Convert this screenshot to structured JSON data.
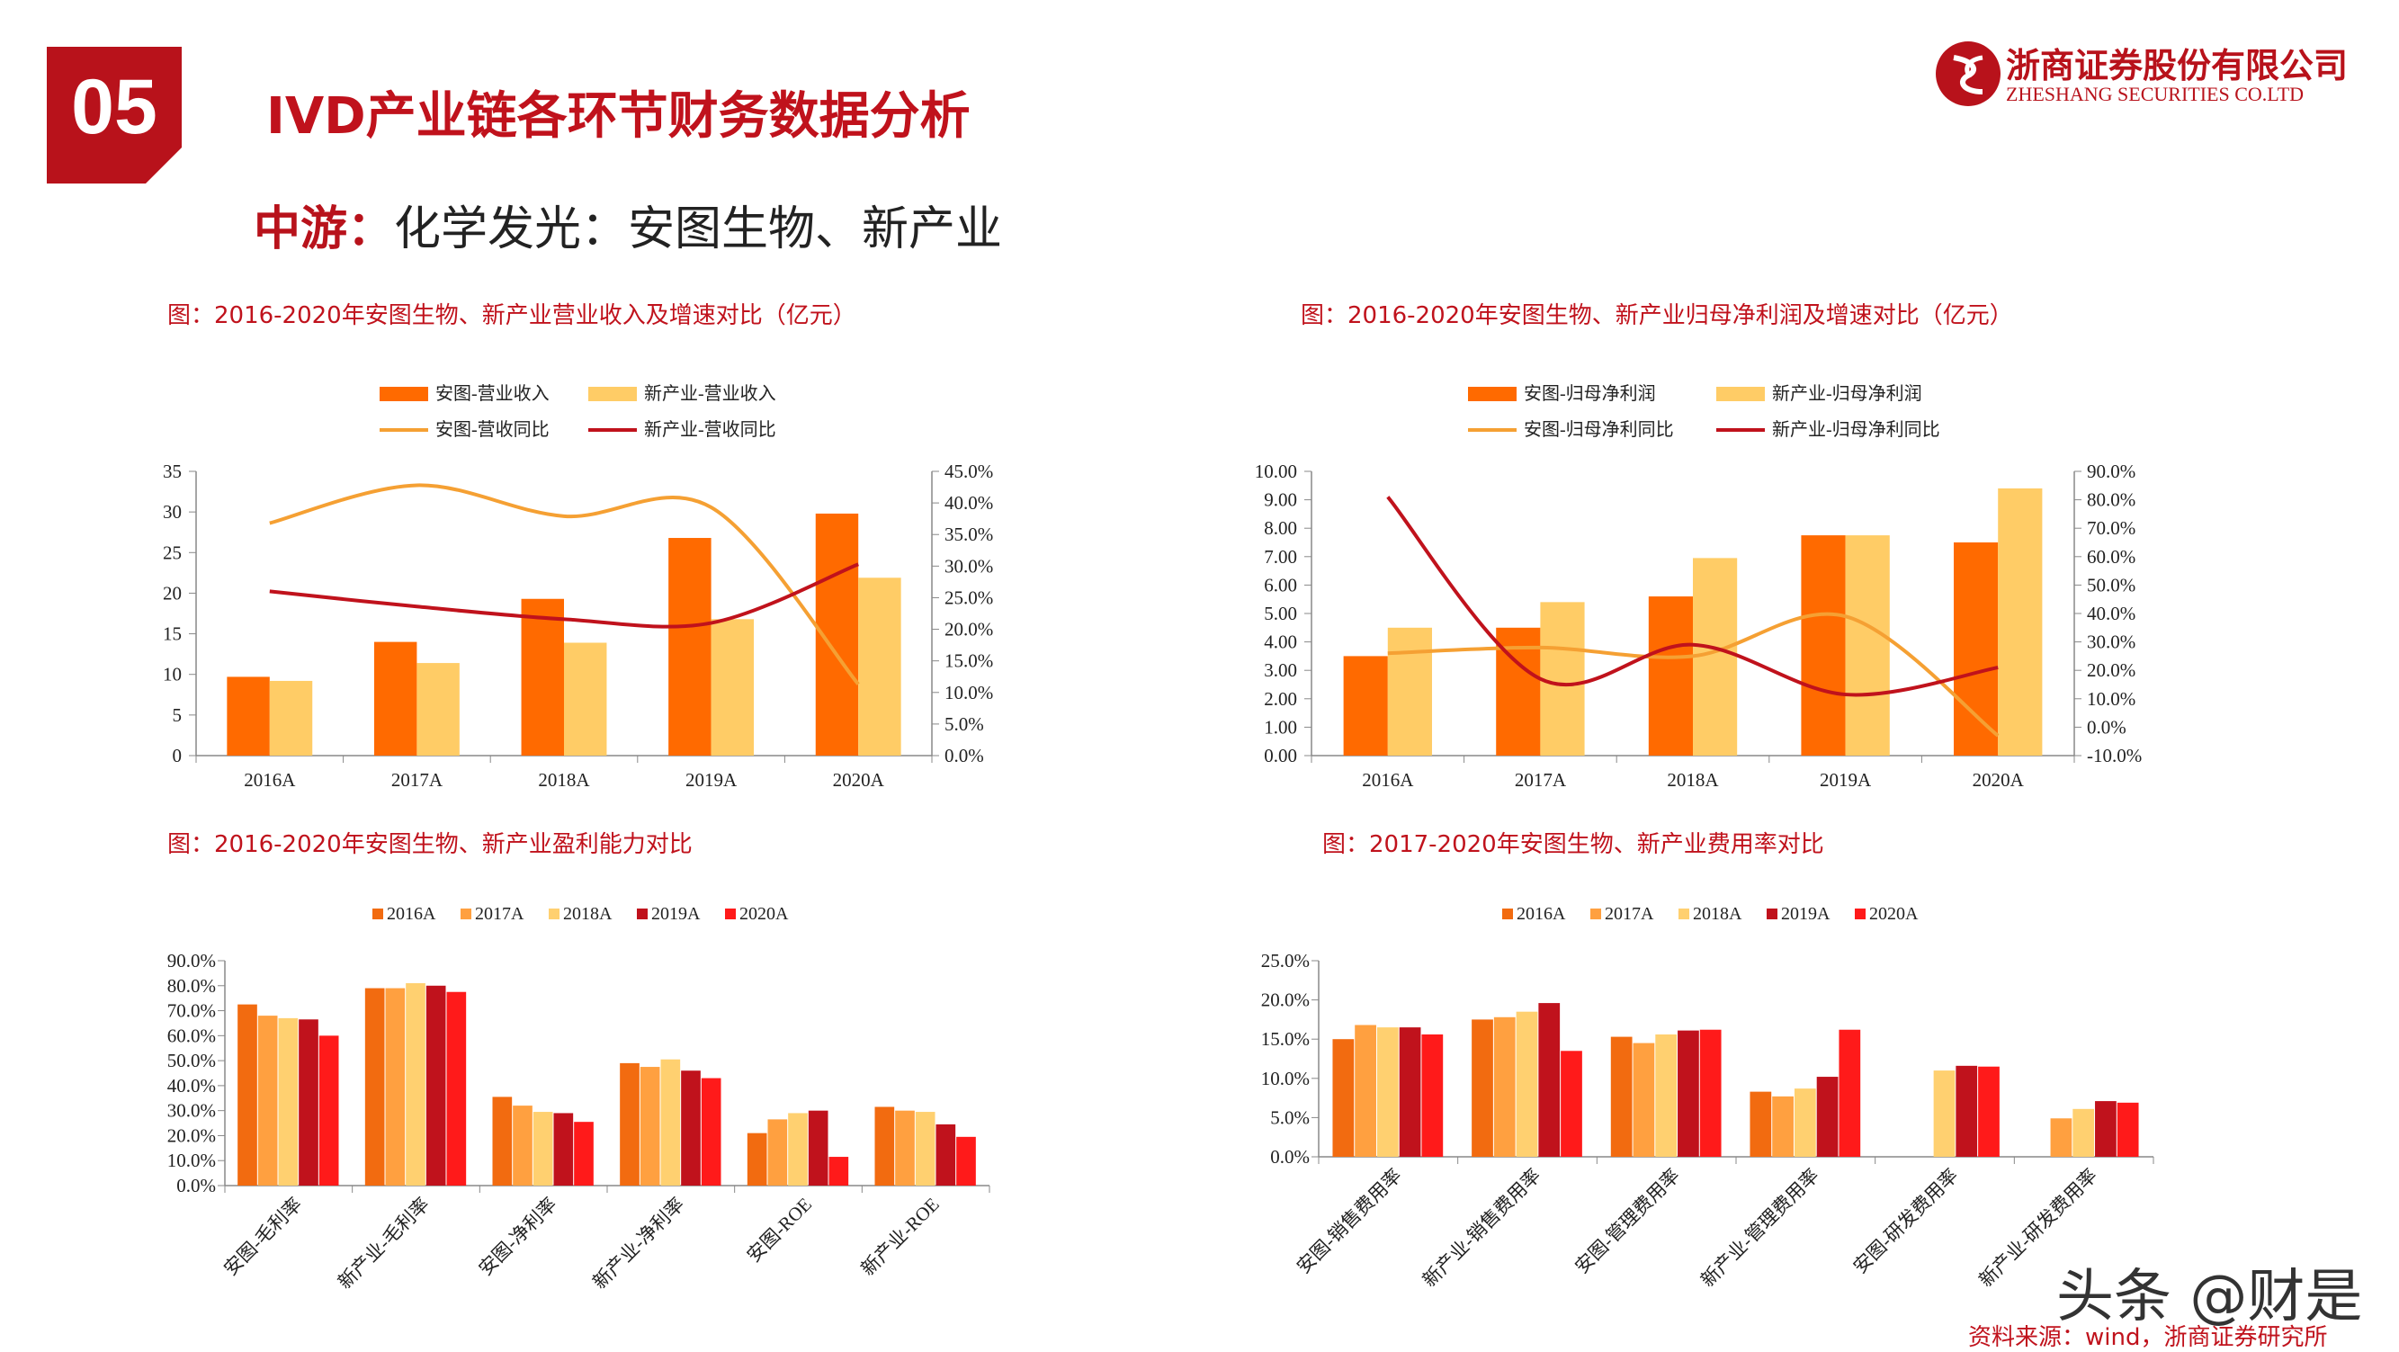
{
  "header": {
    "badge": "05",
    "title": "IVD产业链各环节财务数据分析",
    "subtitle_bold": "中游：",
    "subtitle_rest": "化学发光：安图生物、新产业",
    "logo_cn": "浙商证券股份有限公司",
    "logo_en": "ZHESHANG SECURITIES CO.LTD"
  },
  "footer": {
    "source": "资料来源：wind，浙商证券研究所",
    "watermark": "头条 @财是"
  },
  "colors": {
    "antu_bar": "#ff6a00",
    "xcy_bar": "#ffcc66",
    "antu_line": "#f5a033",
    "xcy_line": "#c0121c",
    "y2016": "#f26b10",
    "y2017": "#ffa040",
    "y2018": "#ffd070",
    "y2019": "#c0121c",
    "y2020": "#ff1a1a"
  },
  "chart_data": [
    {
      "type": "bar",
      "title": "图：2016-2020年安图生物、新产业营业收入及增速对比（亿元）",
      "categories": [
        "2016A",
        "2017A",
        "2018A",
        "2019A",
        "2020A"
      ],
      "series": [
        {
          "name": "安图-营业收入",
          "kind": "bar",
          "axis": "left",
          "values": [
            9.7,
            14.0,
            19.3,
            26.8,
            29.8
          ]
        },
        {
          "name": "新产业-营业收入",
          "kind": "bar",
          "axis": "left",
          "values": [
            9.2,
            11.4,
            13.9,
            16.8,
            21.9
          ]
        },
        {
          "name": "安图-营收同比",
          "kind": "line",
          "axis": "right",
          "values": [
            36.8,
            42.8,
            37.9,
            39.3,
            11.3
          ]
        },
        {
          "name": "新产业-营收同比",
          "kind": "line",
          "axis": "right",
          "values": [
            26.0,
            23.6,
            21.6,
            21.0,
            30.3
          ]
        }
      ],
      "yticks_left": [
        "0",
        "5",
        "10",
        "15",
        "20",
        "25",
        "30",
        "35"
      ],
      "ylim_left": [
        0,
        35
      ],
      "yticks_right": [
        "0.0%",
        "5.0%",
        "10.0%",
        "15.0%",
        "20.0%",
        "25.0%",
        "30.0%",
        "35.0%",
        "40.0%",
        "45.0%"
      ],
      "ylim_right": [
        0,
        45
      ],
      "legend": "top"
    },
    {
      "type": "bar",
      "title": "图：2016-2020年安图生物、新产业归母净利润及增速对比（亿元）",
      "categories": [
        "2016A",
        "2017A",
        "2018A",
        "2019A",
        "2020A"
      ],
      "series": [
        {
          "name": "安图-归母净利润",
          "kind": "bar",
          "axis": "left",
          "values": [
            3.5,
            4.5,
            5.6,
            7.75,
            7.5
          ]
        },
        {
          "name": "新产业-归母净利润",
          "kind": "bar",
          "axis": "left",
          "values": [
            4.5,
            5.4,
            6.95,
            7.75,
            9.4
          ]
        },
        {
          "name": "安图-归母净利同比",
          "kind": "line",
          "axis": "right",
          "values": [
            26.0,
            28.0,
            25.0,
            39.0,
            -3.0
          ]
        },
        {
          "name": "新产业-归母净利同比",
          "kind": "line",
          "axis": "right",
          "values": [
            81.0,
            17.0,
            29.0,
            11.5,
            21.0
          ]
        }
      ],
      "yticks_left": [
        "0.00",
        "1.00",
        "2.00",
        "3.00",
        "4.00",
        "5.00",
        "6.00",
        "7.00",
        "8.00",
        "9.00",
        "10.00"
      ],
      "ylim_left": [
        0,
        10
      ],
      "yticks_right": [
        "-10.0%",
        "0.0%",
        "10.0%",
        "20.0%",
        "30.0%",
        "40.0%",
        "50.0%",
        "60.0%",
        "70.0%",
        "80.0%",
        "90.0%"
      ],
      "ylim_right": [
        -10,
        90
      ],
      "legend": "top"
    },
    {
      "type": "bar",
      "title": "图：2016-2020年安图生物、新产业盈利能力对比",
      "categories": [
        "安图-毛利率",
        "新产业-毛利率",
        "安图-净利率",
        "新产业-净利率",
        "安图-ROE",
        "新产业-ROE"
      ],
      "series": [
        {
          "name": "2016A",
          "values": [
            72.5,
            79.0,
            35.5,
            49.0,
            21.0,
            31.5
          ]
        },
        {
          "name": "2017A",
          "values": [
            68.0,
            79.0,
            32.0,
            47.5,
            26.5,
            30.0
          ]
        },
        {
          "name": "2018A",
          "values": [
            67.0,
            81.0,
            29.5,
            50.5,
            29.0,
            29.5
          ]
        },
        {
          "name": "2019A",
          "values": [
            66.5,
            80.0,
            29.0,
            46.0,
            30.0,
            24.5
          ]
        },
        {
          "name": "2020A",
          "values": [
            60.0,
            77.5,
            25.5,
            43.0,
            11.5,
            19.5
          ]
        }
      ],
      "yticks": [
        "0.0%",
        "10.0%",
        "20.0%",
        "30.0%",
        "40.0%",
        "50.0%",
        "60.0%",
        "70.0%",
        "80.0%",
        "90.0%"
      ],
      "ylim": [
        0,
        90
      ],
      "legend": "top"
    },
    {
      "type": "bar",
      "title": "图：2017-2020年安图生物、新产业费用率对比",
      "categories": [
        "安图-销售费用率",
        "新产业-销售费用率",
        "安图-管理费用率",
        "新产业-管理费用率",
        "安图-研发费用率",
        "新产业-研发费用率"
      ],
      "series": [
        {
          "name": "2016A",
          "values": [
            15.0,
            17.5,
            15.3,
            8.3,
            0,
            0
          ]
        },
        {
          "name": "2017A",
          "values": [
            16.8,
            17.8,
            14.5,
            7.7,
            0,
            4.9
          ]
        },
        {
          "name": "2018A",
          "values": [
            16.5,
            18.5,
            15.6,
            8.7,
            11.0,
            6.1
          ]
        },
        {
          "name": "2019A",
          "values": [
            16.5,
            19.6,
            16.1,
            10.2,
            11.6,
            7.1
          ]
        },
        {
          "name": "2020A",
          "values": [
            15.6,
            13.5,
            16.2,
            16.2,
            11.5,
            6.9
          ]
        }
      ],
      "yticks": [
        "0.0%",
        "5.0%",
        "10.0%",
        "15.0%",
        "20.0%",
        "25.0%"
      ],
      "ylim": [
        0,
        25
      ],
      "legend": "top"
    }
  ]
}
